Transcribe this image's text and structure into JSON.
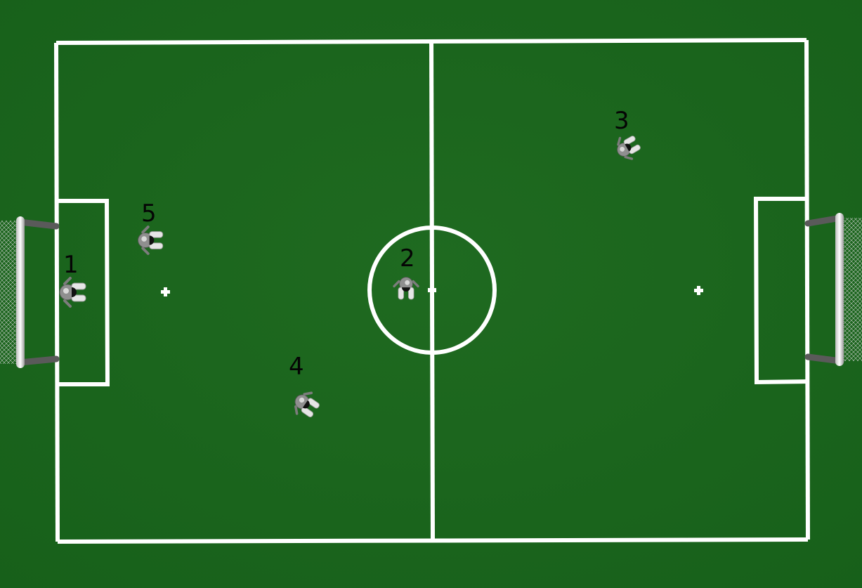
{
  "field": {
    "grass_color": "#1d6a1f",
    "line_color": "#ffffff"
  },
  "robots": [
    {
      "id": "robot-1",
      "label": "1",
      "heading": "left"
    },
    {
      "id": "robot-2",
      "label": "2",
      "heading": "down"
    },
    {
      "id": "robot-3",
      "label": "3",
      "heading": "up-right"
    },
    {
      "id": "robot-4",
      "label": "4",
      "heading": "down-left"
    },
    {
      "id": "robot-5",
      "label": "5",
      "heading": "left"
    }
  ]
}
